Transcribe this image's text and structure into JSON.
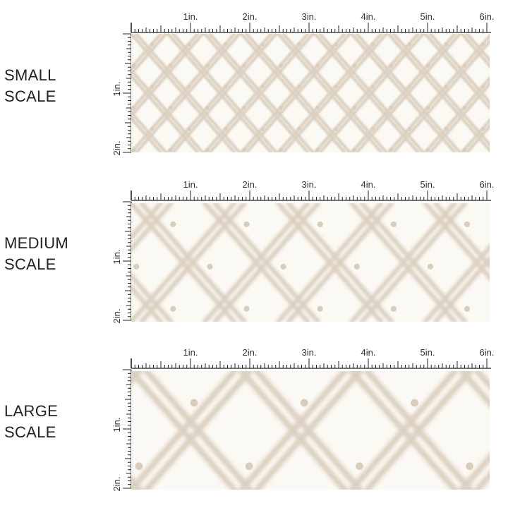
{
  "colors": {
    "background": "#fbf9f3",
    "pattern": "#d9cdbd",
    "ruler": "#222222",
    "text": "#222222"
  },
  "ruler": {
    "horizontal_labels": [
      "1in.",
      "2in.",
      "3in.",
      "4in.",
      "5in.",
      "6in."
    ],
    "vertical_labels": [
      "1in.",
      "2in."
    ]
  },
  "sections": [
    {
      "label": "SMALL\nSCALE",
      "repeat_inches": 1
    },
    {
      "label": "MEDIUM\nSCALE",
      "repeat_inches": 2
    },
    {
      "label": "LARGE\nSCALE",
      "repeat_inches": 3
    }
  ]
}
